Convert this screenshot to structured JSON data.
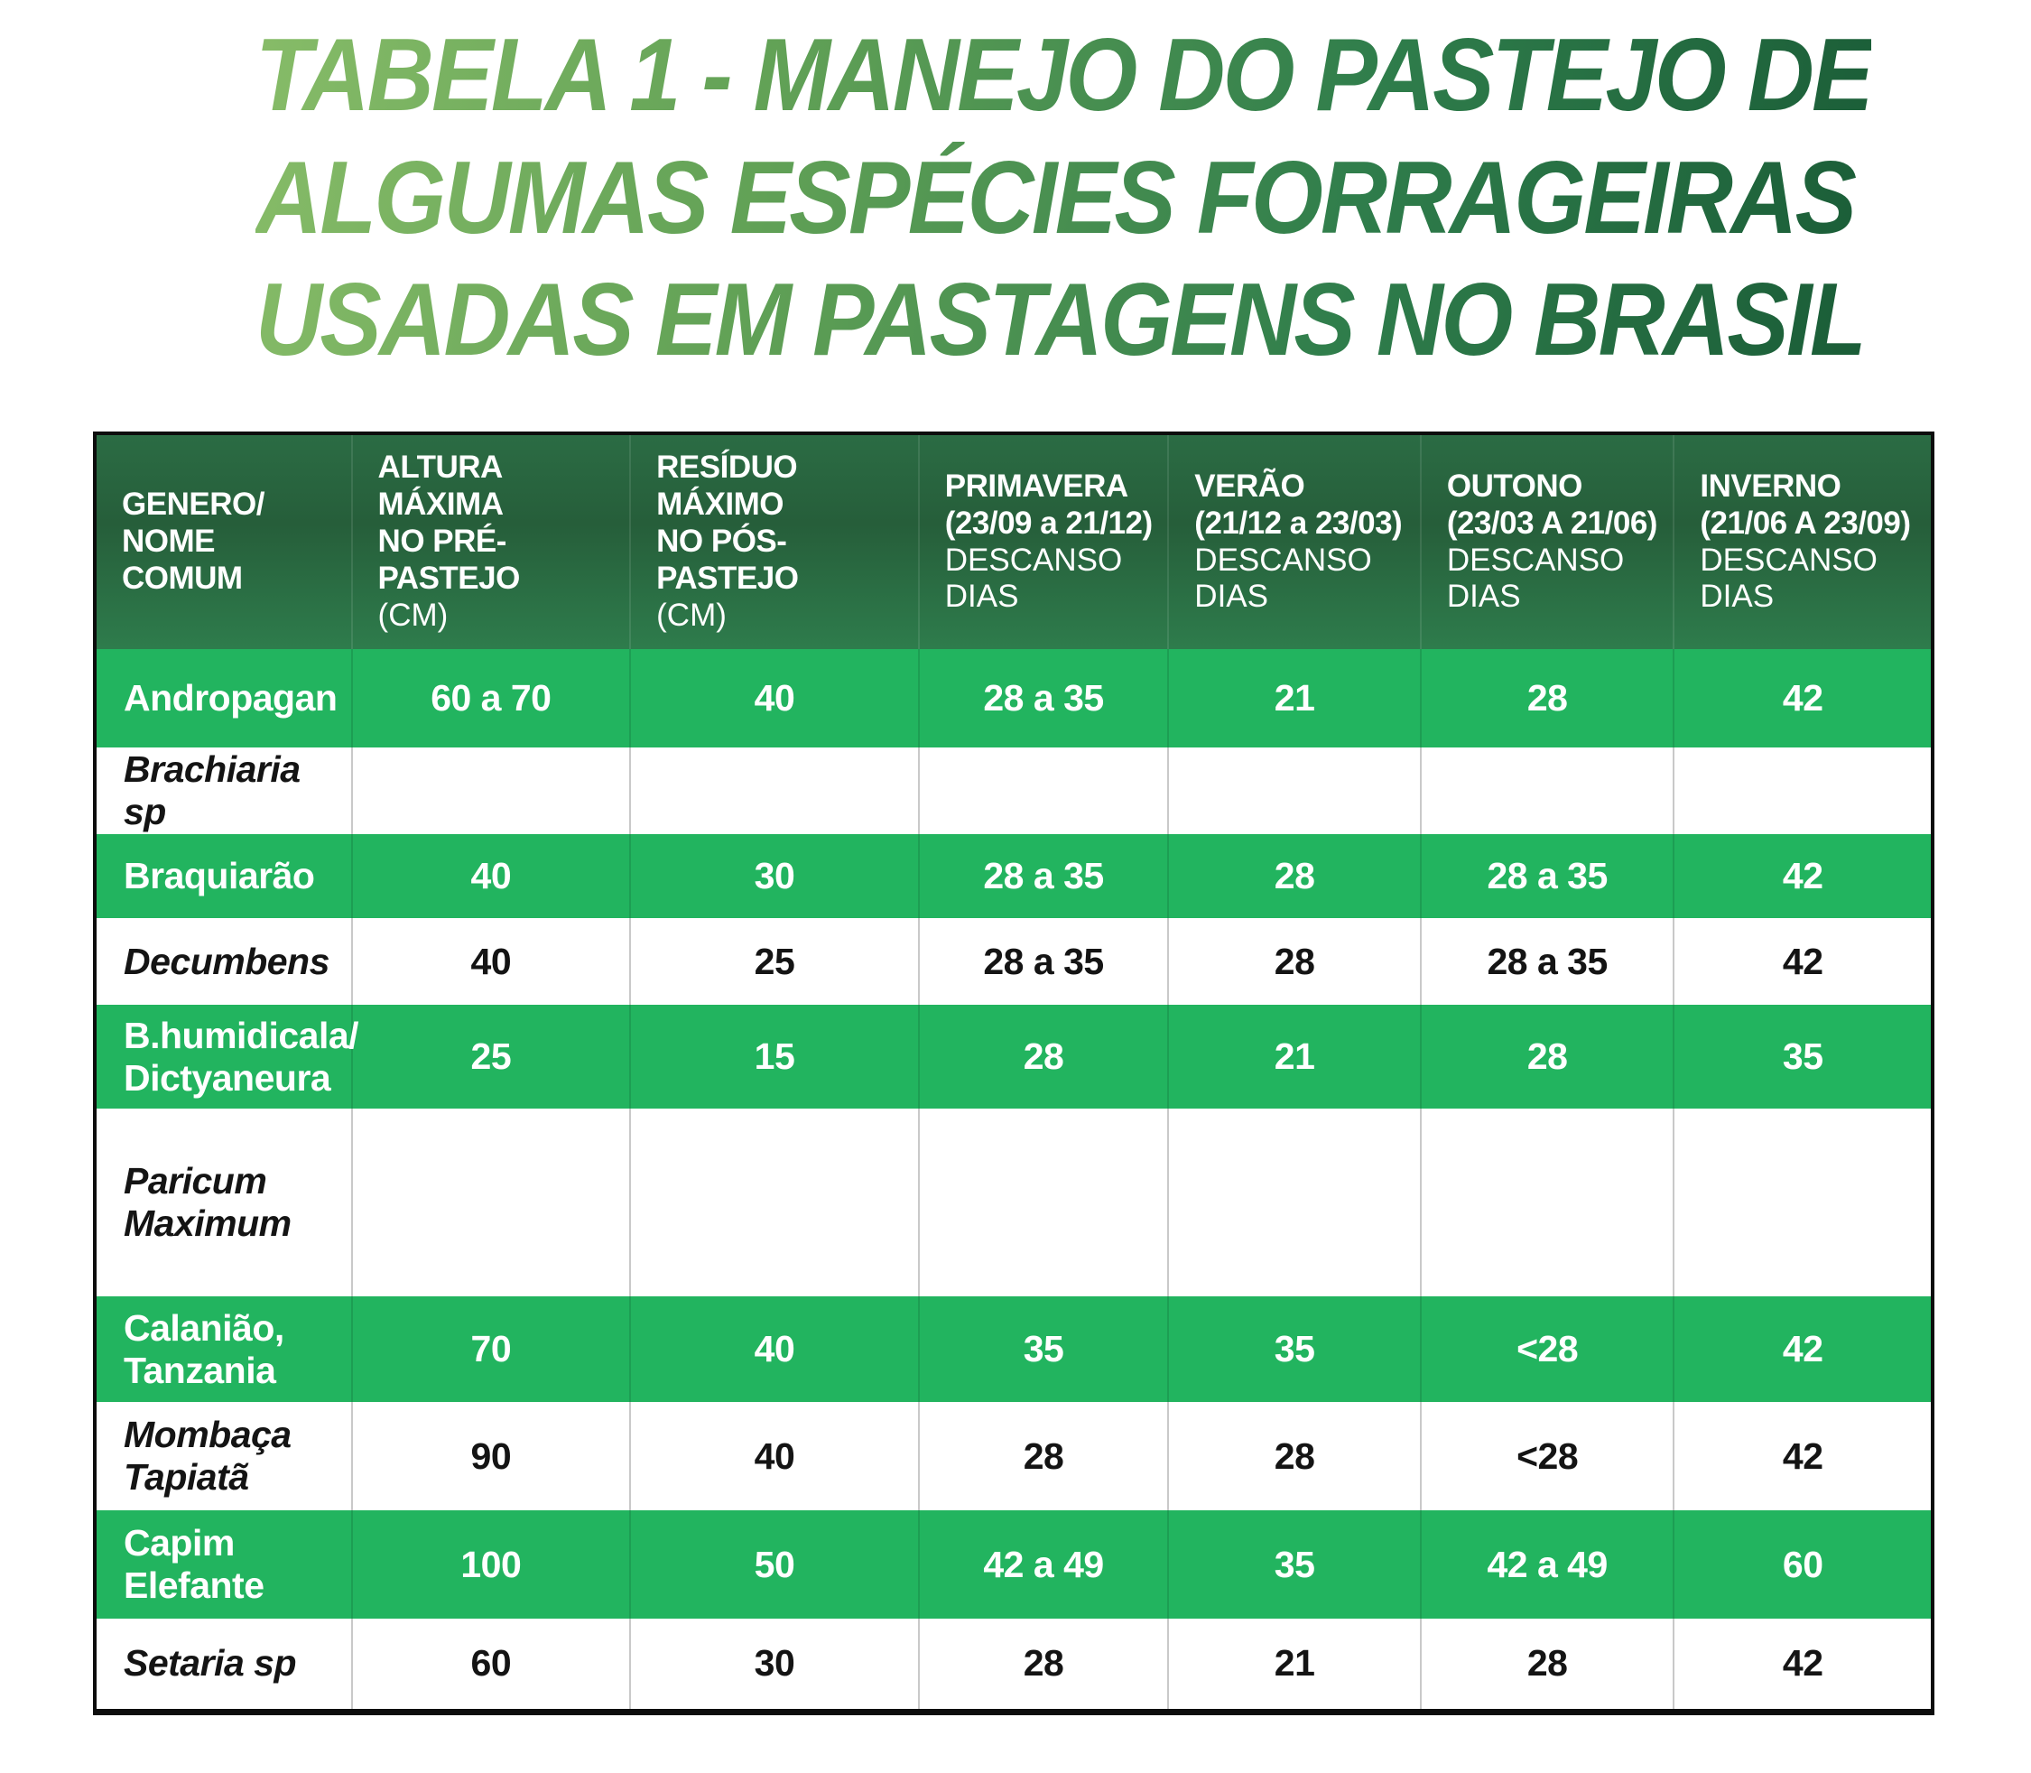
{
  "title": {
    "lines": [
      "TABELA 1 - MANEJO DO PASTEJO DE",
      "ALGUMAS ESPÉCIES FORRAGEIRAS",
      "USADAS EM PASTAGENS NO BRASIL"
    ],
    "gradient_start": "#87BC68",
    "gradient_end": "#1A5C37"
  },
  "colors": {
    "header_green_top": "#2B6C44",
    "header_green_bottom": "#2E7C4C",
    "row_green": "#22B45F",
    "row_white": "#FFFFFF",
    "text_on_green": "#FFFFFF",
    "text_on_white": "#141414",
    "table_border": "#0D0D0D",
    "separator_on_white": "#C9C9C9"
  },
  "table": {
    "columns": [
      {
        "bold_lines": [
          "GENERO/",
          "NOME COMUM"
        ],
        "light_lines": []
      },
      {
        "bold_lines": [
          "ALTURA MÁXIMA",
          "NO PRÉ-PASTEJO"
        ],
        "light_lines": [
          "(CM)"
        ]
      },
      {
        "bold_lines": [
          "RESÍDUO MÁXIMO",
          "NO PÓS-PASTEJO"
        ],
        "light_lines": [
          "(CM)"
        ]
      },
      {
        "bold_lines": [
          "PRIMAVERA",
          "(23/09 a 21/12)"
        ],
        "light_lines": [
          "DESCANSO DIAS"
        ]
      },
      {
        "bold_lines": [
          "VERÃO",
          "(21/12 a 23/03)"
        ],
        "light_lines": [
          "DESCANSO DIAS"
        ]
      },
      {
        "bold_lines": [
          "OUTONO",
          "(23/03 A 21/06)"
        ],
        "light_lines": [
          "DESCANSO DIAS"
        ]
      },
      {
        "bold_lines": [
          "INVERNO",
          "(21/06 A 23/09)"
        ],
        "light_lines": [
          "DESCANSO DIAS"
        ]
      }
    ],
    "rows": [
      {
        "lines": [
          "Andropagan"
        ],
        "values": [
          "60 a 70",
          "40",
          "28 a 35",
          "21",
          "28",
          "42"
        ]
      },
      {
        "lines": [
          "Brachiaria sp"
        ],
        "values": [
          "",
          "",
          "",
          "",
          "",
          ""
        ]
      },
      {
        "lines": [
          "Braquiarão"
        ],
        "values": [
          "40",
          "30",
          "28 a 35",
          "28",
          "28 a 35",
          "42"
        ]
      },
      {
        "lines": [
          "Decumbens"
        ],
        "values": [
          "40",
          "25",
          "28 a 35",
          "28",
          "28 a 35",
          "42"
        ]
      },
      {
        "lines": [
          "B.humidicala/",
          "Dictyaneura"
        ],
        "values": [
          "25",
          "15",
          "28",
          "21",
          "28",
          "35"
        ]
      },
      {
        "lines": [
          "Paricum",
          "Maximum"
        ],
        "values": [
          "",
          "",
          "",
          "",
          "",
          ""
        ]
      },
      {
        "lines": [
          "Calanião,",
          "Tanzania"
        ],
        "values": [
          "70",
          "40",
          "35",
          "35",
          "<28",
          "42"
        ]
      },
      {
        "lines": [
          "Mombaça",
          "Tapiatã"
        ],
        "values": [
          "90",
          "40",
          "28",
          "28",
          "<28",
          "42"
        ]
      },
      {
        "lines": [
          "Capim Elefante"
        ],
        "values": [
          "100",
          "50",
          "42 a 49",
          "35",
          "42 a 49",
          "60"
        ]
      },
      {
        "lines": [
          "Setaria sp"
        ],
        "values": [
          "60",
          "30",
          "28",
          "21",
          "28",
          "42"
        ]
      }
    ]
  },
  "chart_data": {
    "type": "table",
    "title": "TABELA 1 - MANEJO DO PASTEJO DE ALGUMAS ESPÉCIES FORRAGEIRAS USADAS EM PASTAGENS NO BRASIL",
    "columns": [
      "GENERO/ NOME COMUM",
      "ALTURA MÁXIMA NO PRÉ-PASTEJO (CM)",
      "RESÍDUO MÁXIMO NO PÓS-PASTEJO (CM)",
      "PRIMAVERA (23/09 a 21/12) DESCANSO DIAS",
      "VERÃO (21/12 a 23/03) DESCANSO DIAS",
      "OUTONO (23/03 A 21/06) DESCANSO DIAS",
      "INVERNO (21/06 A 23/09) DESCANSO DIAS"
    ],
    "rows": [
      [
        "Andropagan",
        "60 a 70",
        "40",
        "28 a 35",
        "21",
        "28",
        "42"
      ],
      [
        "Brachiaria sp",
        "",
        "",
        "",
        "",
        "",
        ""
      ],
      [
        "Braquiarão",
        "40",
        "30",
        "28 a 35",
        "28",
        "28 a 35",
        "42"
      ],
      [
        "Decumbens",
        "40",
        "25",
        "28 a 35",
        "28",
        "28 a 35",
        "42"
      ],
      [
        "B.humidicala/ Dictyaneura",
        "25",
        "15",
        "28",
        "21",
        "28",
        "35"
      ],
      [
        "Paricum Maximum",
        "",
        "",
        "",
        "",
        "",
        ""
      ],
      [
        "Calanião, Tanzania",
        "70",
        "40",
        "35",
        "35",
        "<28",
        "42"
      ],
      [
        "Mombaça Tapiatã",
        "90",
        "40",
        "28",
        "28",
        "<28",
        "42"
      ],
      [
        "Capim Elefante",
        "100",
        "50",
        "42 a 49",
        "35",
        "42 a 49",
        "60"
      ],
      [
        "Setaria sp",
        "60",
        "30",
        "28",
        "21",
        "28",
        "42"
      ]
    ]
  }
}
